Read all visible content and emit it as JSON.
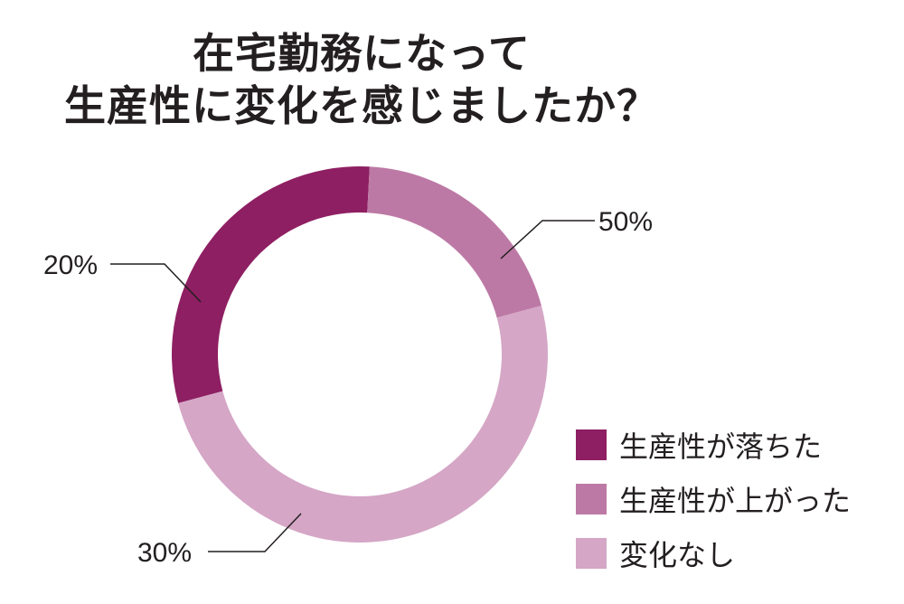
{
  "chart_data": {
    "type": "pie",
    "title_lines": [
      "在宅勤務になって",
      "生産性に変化を感じましたか？"
    ],
    "categories": [
      "生産性が落ちた",
      "生産性が上がった",
      "変化なし"
    ],
    "values": [
      30,
      20,
      50
    ],
    "value_labels": [
      "30%",
      "20%",
      "50%"
    ],
    "colors": [
      "#8e1f62",
      "#bd79a5",
      "#d5a6c6"
    ],
    "donut": true,
    "legend_position": "bottom-right"
  }
}
